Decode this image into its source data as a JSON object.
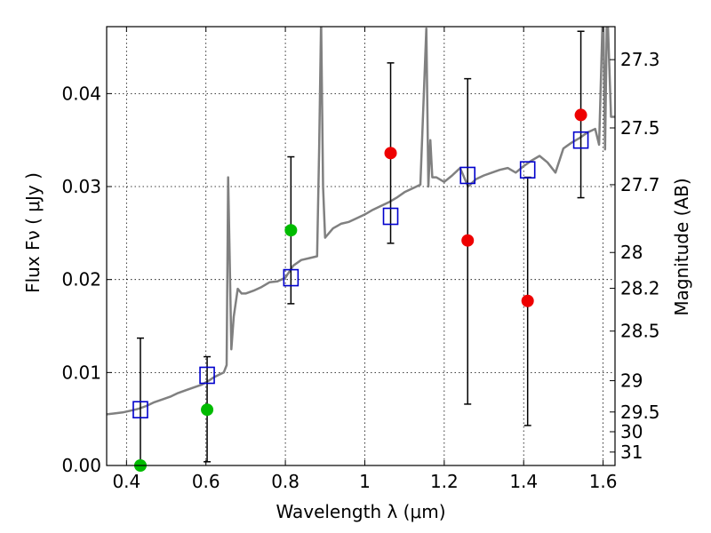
{
  "chart_data": {
    "type": "scatter",
    "title": "",
    "xlabel": "Wavelength  λ (μm)",
    "ylabel": "Flux  Fν  ( μJy )",
    "y2label": "Magnitude (AB)",
    "xlim": [
      0.35,
      1.63
    ],
    "ylim": [
      0.0,
      0.0472
    ],
    "grid": true,
    "x_ticks": [
      {
        "value": 0.4,
        "label": "0.4"
      },
      {
        "value": 0.6,
        "label": "0.6"
      },
      {
        "value": 0.8,
        "label": "0.8"
      },
      {
        "value": 1.0,
        "label": "1"
      },
      {
        "value": 1.2,
        "label": "1.2"
      },
      {
        "value": 1.4,
        "label": "1.4"
      },
      {
        "value": 1.6,
        "label": "1.6"
      }
    ],
    "y_ticks": [
      {
        "value": 0.0,
        "label": "0.00"
      },
      {
        "value": 0.01,
        "label": "0.01"
      },
      {
        "value": 0.02,
        "label": "0.02"
      },
      {
        "value": 0.03,
        "label": "0.03"
      },
      {
        "value": 0.04,
        "label": "0.04"
      }
    ],
    "y2_ticks": [
      {
        "value": 27.3,
        "label": "27.3"
      },
      {
        "value": 27.5,
        "label": "27.5"
      },
      {
        "value": 27.7,
        "label": "27.7"
      },
      {
        "value": 28.0,
        "label": "28"
      },
      {
        "value": 28.2,
        "label": "28.2"
      },
      {
        "value": 28.5,
        "label": "28.5"
      },
      {
        "value": 29.0,
        "label": "29"
      },
      {
        "value": 29.5,
        "label": "29.5"
      },
      {
        "value": 30.0,
        "label": "30"
      },
      {
        "value": 31.0,
        "label": "31"
      }
    ],
    "series": [
      {
        "kind": "line",
        "color": "#808080",
        "x": [
          0.35,
          0.37,
          0.39,
          0.41,
          0.43,
          0.45,
          0.47,
          0.49,
          0.51,
          0.53,
          0.55,
          0.57,
          0.59,
          0.61,
          0.62,
          0.635,
          0.645,
          0.652,
          0.656,
          0.66,
          0.664,
          0.67,
          0.68,
          0.69,
          0.7,
          0.72,
          0.74,
          0.76,
          0.78,
          0.8,
          0.82,
          0.84,
          0.86,
          0.88,
          0.885,
          0.89,
          0.895,
          0.9,
          0.92,
          0.94,
          0.96,
          0.98,
          1.0,
          1.02,
          1.04,
          1.06,
          1.08,
          1.1,
          1.12,
          1.14,
          1.155,
          1.16,
          1.165,
          1.17,
          1.18,
          1.2,
          1.22,
          1.24,
          1.26,
          1.28,
          1.3,
          1.32,
          1.34,
          1.36,
          1.38,
          1.4,
          1.42,
          1.44,
          1.46,
          1.48,
          1.5,
          1.52,
          1.54,
          1.56,
          1.58,
          1.59,
          1.6,
          1.605,
          1.61,
          1.62,
          1.63
        ],
        "y": [
          0.0055,
          0.0056,
          0.0057,
          0.0059,
          0.0061,
          0.0064,
          0.0068,
          0.0071,
          0.0074,
          0.0078,
          0.0081,
          0.0084,
          0.0087,
          0.0092,
          0.0095,
          0.0098,
          0.01,
          0.0108,
          0.031,
          0.022,
          0.0125,
          0.016,
          0.019,
          0.0185,
          0.0185,
          0.0188,
          0.0192,
          0.0197,
          0.0198,
          0.0202,
          0.0215,
          0.0221,
          0.0223,
          0.0225,
          0.034,
          0.048,
          0.03,
          0.0245,
          0.0255,
          0.026,
          0.0262,
          0.0266,
          0.027,
          0.0275,
          0.0279,
          0.0283,
          0.0288,
          0.0294,
          0.0298,
          0.0302,
          0.047,
          0.03,
          0.035,
          0.031,
          0.031,
          0.0305,
          0.0312,
          0.032,
          0.03,
          0.0308,
          0.0312,
          0.0315,
          0.0318,
          0.032,
          0.0315,
          0.0322,
          0.0328,
          0.0333,
          0.0326,
          0.0315,
          0.0341,
          0.0347,
          0.0352,
          0.0358,
          0.0362,
          0.0345,
          0.05,
          0.034,
          0.05,
          0.0375,
          0.0375
        ]
      },
      {
        "kind": "errorbars",
        "color": "#000000",
        "x": [
          0.435,
          0.603,
          0.814,
          1.065,
          1.259,
          1.41,
          1.544
        ],
        "lo": [
          0.0,
          0.0004,
          0.0174,
          0.0239,
          0.0066,
          0.0043,
          0.0288
        ],
        "hi": [
          0.0137,
          0.0117,
          0.0332,
          0.0433,
          0.0416,
          0.031,
          0.0467
        ]
      },
      {
        "kind": "markers",
        "marker": "open-square",
        "color": "#0000cc",
        "x": [
          0.435,
          0.603,
          0.814,
          1.065,
          1.259,
          1.41,
          1.544
        ],
        "y": [
          0.006,
          0.0097,
          0.0202,
          0.0268,
          0.0312,
          0.0318,
          0.035
        ]
      },
      {
        "kind": "markers",
        "marker": "filled-circle",
        "color": "#00bb00",
        "x": [
          0.435,
          0.603,
          0.814
        ],
        "y": [
          0.0,
          0.006,
          0.0253
        ]
      },
      {
        "kind": "markers",
        "marker": "filled-circle",
        "color": "#ee0000",
        "x": [
          1.065,
          1.259,
          1.41,
          1.544
        ],
        "y": [
          0.0336,
          0.0242,
          0.0177,
          0.0377
        ]
      }
    ]
  }
}
